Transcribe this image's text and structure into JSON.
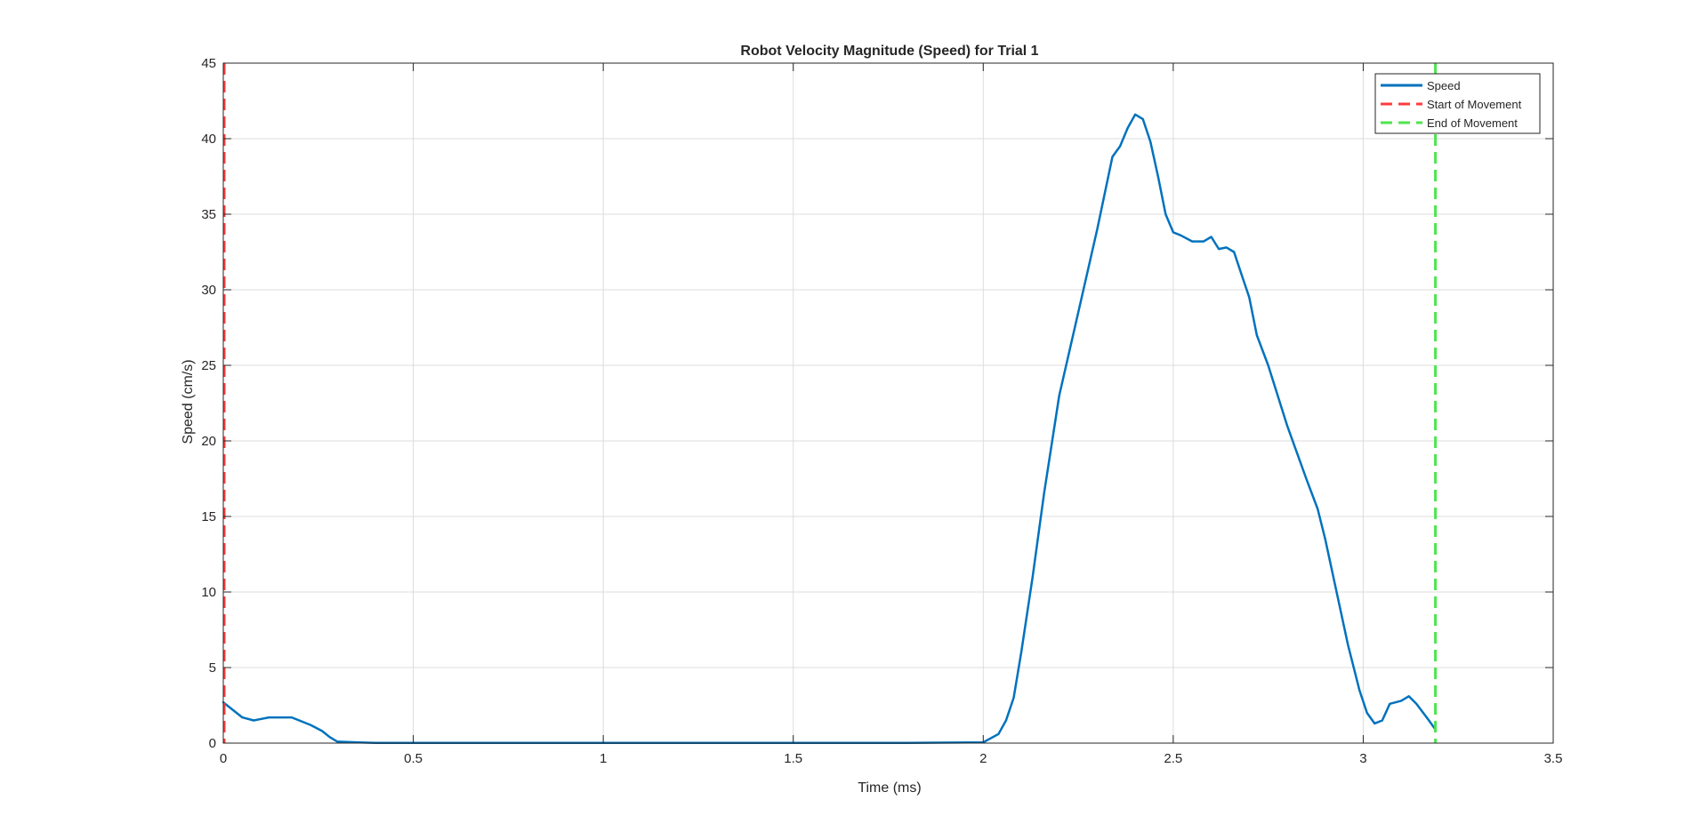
{
  "chart_data": {
    "type": "line",
    "title": "Robot Velocity Magnitude (Speed) for Trial 1",
    "xlabel": "Time (ms)",
    "ylabel": "Speed (cm/s)",
    "xlim": [
      0,
      3.5
    ],
    "ylim": [
      0,
      45
    ],
    "xticks": [
      0,
      0.5,
      1,
      1.5,
      2,
      2.5,
      3,
      3.5
    ],
    "xtick_labels": [
      "0",
      "0.5",
      "1",
      "1.5",
      "2",
      "2.5",
      "3",
      "3.5"
    ],
    "yticks": [
      0,
      5,
      10,
      15,
      20,
      25,
      30,
      35,
      40,
      45
    ],
    "ytick_labels": [
      "0",
      "5",
      "10",
      "15",
      "20",
      "25",
      "30",
      "35",
      "40",
      "45"
    ],
    "grid": true,
    "legend_position": "top-right",
    "series": [
      {
        "name": "Speed",
        "color": "#0072BD",
        "style": "solid",
        "x": [
          0,
          0.02,
          0.05,
          0.08,
          0.1,
          0.12,
          0.15,
          0.18,
          0.2,
          0.23,
          0.26,
          0.28,
          0.3,
          0.35,
          0.4,
          0.5,
          0.6,
          0.7,
          0.8,
          0.9,
          1.0,
          1.2,
          1.5,
          1.8,
          2.0,
          2.04,
          2.06,
          2.08,
          2.1,
          2.13,
          2.16,
          2.2,
          2.25,
          2.3,
          2.34,
          2.36,
          2.38,
          2.4,
          2.42,
          2.44,
          2.46,
          2.48,
          2.5,
          2.52,
          2.55,
          2.58,
          2.6,
          2.62,
          2.64,
          2.66,
          2.68,
          2.7,
          2.72,
          2.75,
          2.8,
          2.85,
          2.88,
          2.9,
          2.93,
          2.96,
          2.99,
          3.01,
          3.03,
          3.05,
          3.07,
          3.1,
          3.12,
          3.14,
          3.17,
          3.19
        ],
        "y": [
          2.7,
          2.3,
          1.7,
          1.5,
          1.6,
          1.7,
          1.7,
          1.7,
          1.5,
          1.2,
          0.8,
          0.4,
          0.1,
          0.05,
          0.02,
          0.02,
          0.02,
          0.02,
          0.02,
          0.02,
          0.02,
          0.02,
          0.02,
          0.02,
          0.05,
          0.6,
          1.5,
          3.0,
          6.0,
          11.0,
          16.5,
          23.0,
          28.5,
          34.0,
          38.8,
          39.5,
          40.7,
          41.6,
          41.3,
          39.8,
          37.5,
          35.0,
          33.8,
          33.6,
          33.2,
          33.2,
          33.5,
          32.7,
          32.8,
          32.5,
          31.0,
          29.5,
          27.0,
          25.0,
          21.0,
          17.5,
          15.5,
          13.5,
          10.0,
          6.5,
          3.5,
          2.0,
          1.3,
          1.5,
          2.6,
          2.8,
          3.1,
          2.6,
          1.6,
          0.9
        ]
      },
      {
        "name": "Start of Movement",
        "color": "#FF3B3B",
        "style": "dashed",
        "vline_x": 0
      },
      {
        "name": "End of Movement",
        "color": "#4CE64C",
        "style": "dashed",
        "vline_x": 3.19
      }
    ]
  }
}
